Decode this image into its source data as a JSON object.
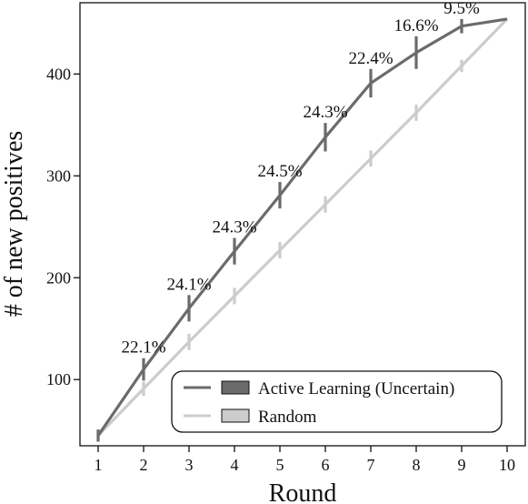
{
  "chart_data": {
    "type": "line",
    "title": "",
    "xlabel": "Round",
    "ylabel": "# of new positives",
    "x": [
      1,
      2,
      3,
      4,
      5,
      6,
      7,
      8,
      9,
      10
    ],
    "xlim": [
      0.6,
      10.4
    ],
    "ylim": [
      35,
      470
    ],
    "xticks": [
      "1",
      "2",
      "3",
      "4",
      "5",
      "6",
      "7",
      "8",
      "9",
      "10"
    ],
    "yticks": [
      100,
      200,
      300,
      400
    ],
    "ytick_labels": [
      "100",
      "200",
      "300",
      "400"
    ],
    "grid": false,
    "legend_position": "bottom-right",
    "series": [
      {
        "name": "Active Learning (Uncertain)",
        "color": "#6b6b6b",
        "values": [
          45,
          110,
          170,
          226,
          281,
          338,
          391,
          421,
          447,
          454
        ],
        "error": [
          6,
          11,
          13,
          13,
          13,
          14,
          14,
          16,
          7,
          0
        ],
        "labels": [
          "",
          "22.1%",
          "24.1%",
          "24.3%",
          "24.5%",
          "24.3%",
          "22.4%",
          "16.6%",
          "9.5%",
          ""
        ]
      },
      {
        "name": "Random",
        "color": "#cccccc",
        "values": [
          45,
          91,
          137,
          182,
          227,
          272,
          317,
          362,
          408,
          454
        ],
        "error": [
          4,
          7,
          8,
          8,
          8,
          8,
          8,
          8,
          6,
          0
        ],
        "labels": []
      }
    ]
  }
}
